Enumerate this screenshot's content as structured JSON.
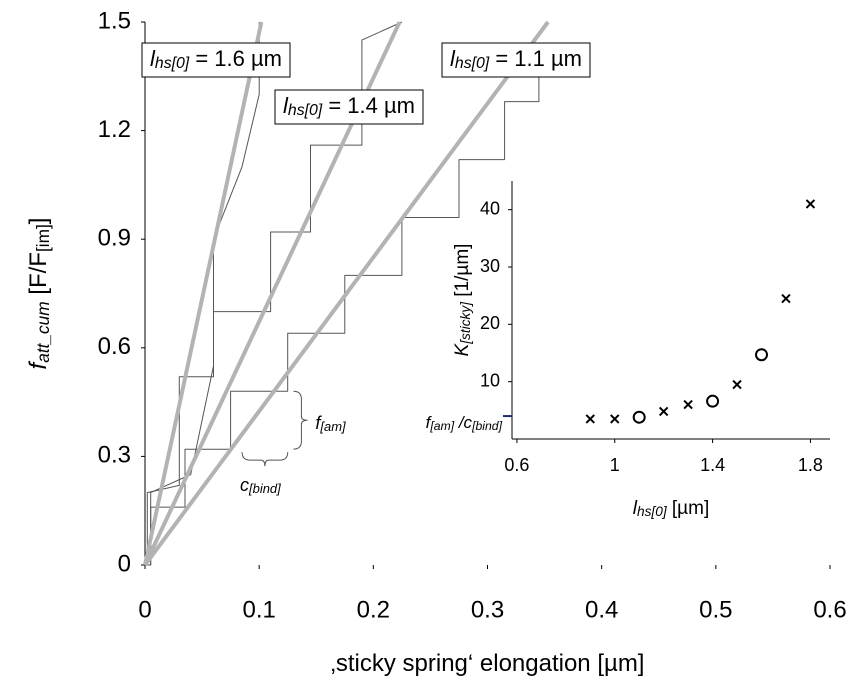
{
  "chart_data": [
    {
      "type": "line",
      "x_label": [
        {
          "text": "‚sticky spring‘ elongation [µm]",
          "sub": false,
          "italic": false
        }
      ],
      "y_label": [
        {
          "text": "f",
          "sub": false,
          "italic": true
        },
        {
          "text": "att_cum",
          "sub": true,
          "italic": true
        },
        {
          "text": " [F/F",
          "sub": false,
          "italic": false
        },
        {
          "text": "[im]",
          "sub": true,
          "italic": false
        },
        {
          "text": "]",
          "sub": false,
          "italic": false
        }
      ],
      "xlim": [
        0,
        0.6
      ],
      "ylim": [
        0,
        1.5
      ],
      "xticks": [
        0,
        0.1,
        0.2,
        0.3,
        0.4,
        0.5,
        0.6
      ],
      "yticks": [
        0,
        0.3,
        0.6,
        0.9,
        1.2,
        1.5
      ],
      "series": [
        {
          "color": "#555555",
          "line_width": 1,
          "x": [
            0,
            0.005,
            0.005,
            0.035,
            0.035,
            0.075,
            0.075,
            0.125,
            0.125,
            0.175,
            0.175,
            0.225,
            0.225,
            0.275,
            0.275,
            0.315,
            0.315,
            0.345,
            0.345
          ],
          "y": [
            0,
            0,
            0.16,
            0.16,
            0.32,
            0.32,
            0.48,
            0.48,
            0.64,
            0.64,
            0.8,
            0.8,
            0.96,
            0.96,
            1.12,
            1.12,
            1.28,
            1.28,
            1.44
          ]
        },
        {
          "color": "#555555",
          "line_width": 1,
          "x": [
            0,
            0.002,
            0.002,
            0.03,
            0.03,
            0.06,
            0.06,
            0.11,
            0.11,
            0.145,
            0.145,
            0.19,
            0.19,
            0.225
          ],
          "y": [
            0,
            0,
            0.2,
            0.22,
            0.52,
            0.52,
            0.7,
            0.7,
            0.92,
            0.92,
            1.16,
            1.16,
            1.45,
            1.5
          ]
        },
        {
          "color": "#555555",
          "line_width": 1,
          "x": [
            0,
            0.005,
            0.005,
            0.04,
            0.06,
            0.06,
            0.085,
            0.1,
            0.1
          ],
          "y": [
            0,
            0,
            0.2,
            0.25,
            0.55,
            0.9,
            1.1,
            1.3,
            1.5
          ]
        },
        {
          "color": "#b3b3b3",
          "line_width": 4,
          "x": [
            0,
            0.102
          ],
          "y": [
            0,
            1.5
          ],
          "label": [
            {
              "text": "l",
              "sub": false,
              "italic": true
            },
            {
              "text": "hs[0]",
              "sub": true,
              "italic": true
            },
            {
              "text": " = 1.6 µm",
              "sub": false,
              "italic": false
            }
          ]
        },
        {
          "color": "#b3b3b3",
          "line_width": 4,
          "x": [
            0,
            0.223
          ],
          "y": [
            0,
            1.5
          ],
          "label": [
            {
              "text": "l",
              "sub": false,
              "italic": true
            },
            {
              "text": "hs[0]",
              "sub": true,
              "italic": true
            },
            {
              "text": " = 1.4 µm",
              "sub": false,
              "italic": false
            }
          ]
        },
        {
          "color": "#b3b3b3",
          "line_width": 4,
          "x": [
            0,
            0.353
          ],
          "y": [
            0,
            1.5
          ],
          "label": [
            {
              "text": "l",
              "sub": false,
              "italic": true
            },
            {
              "text": "hs[0]",
              "sub": true,
              "italic": true
            },
            {
              "text": " = 1.1 µm",
              "sub": false,
              "italic": false
            }
          ]
        }
      ],
      "braces": [
        [
          {
            "text": "f",
            "sub": false,
            "italic": true
          },
          {
            "text": "[am]",
            "sub": true,
            "italic": true
          }
        ],
        [
          {
            "text": "c",
            "sub": false,
            "italic": true
          },
          {
            "text": "[bind]",
            "sub": true,
            "italic": true
          }
        ]
      ]
    },
    {
      "type": "scatter",
      "x_label": [
        {
          "text": "l",
          "sub": false,
          "italic": true
        },
        {
          "text": "hs[0]",
          "sub": true,
          "italic": true
        },
        {
          "text": " [µm]",
          "sub": false,
          "italic": false
        }
      ],
      "y_label": [
        {
          "text": "K",
          "sub": false,
          "italic": true
        },
        {
          "text": "[sticky]",
          "sub": true,
          "italic": true
        },
        {
          "text": " [1/µm]",
          "sub": false,
          "italic": false
        }
      ],
      "xlim": [
        0.58,
        1.88
      ],
      "ylim": [
        0,
        45
      ],
      "xticks": [
        0.6,
        1,
        1.4,
        1.8
      ],
      "yticks": [
        10,
        20,
        30,
        40
      ],
      "series": [
        {
          "marker": "x",
          "color": "#000000",
          "x": [
            0.9,
            1.0,
            1.2,
            1.3,
            1.5,
            1.7,
            1.8
          ],
          "y": [
            3.5,
            3.5,
            4.8,
            6,
            9.5,
            24.5,
            41
          ]
        },
        {
          "marker": "o",
          "color": "#000000",
          "x": [
            1.1,
            1.4,
            1.6
          ],
          "y": [
            3.8,
            6.6,
            14.7
          ]
        }
      ],
      "ref_value": 4,
      "ref_color": "#1f2a6b",
      "ref_label": [
        {
          "text": "f",
          "sub": false,
          "italic": true
        },
        {
          "text": "[am]",
          "sub": true,
          "italic": true
        },
        {
          "text": " /c",
          "sub": false,
          "italic": true
        },
        {
          "text": "[bind]",
          "sub": true,
          "italic": true
        }
      ]
    }
  ]
}
